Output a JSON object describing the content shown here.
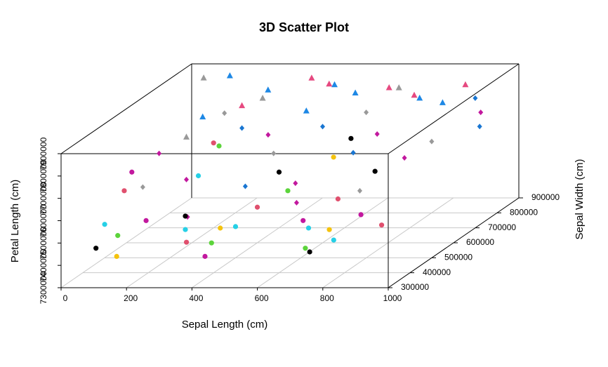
{
  "chart_data": {
    "type": "scatter3d",
    "title": "3D Scatter Plot",
    "x_label": "Sepal Length (cm)",
    "y_label": "Sepal Width (cm)",
    "z_label": "Petal Length (cm)",
    "xlim": [
      0,
      1000
    ],
    "xticks": [
      0,
      200,
      400,
      600,
      800,
      1000
    ],
    "ylim": [
      300000,
      900000
    ],
    "yticks": [
      300000,
      400000,
      500000,
      600000,
      700000,
      800000,
      900000
    ],
    "zlim": [
      7300000,
      7900000
    ],
    "zticks": [
      7300000,
      7400000,
      7500000,
      7600000,
      7700000,
      7800000,
      7900000
    ],
    "grid": true,
    "series": [
      {
        "color": "#1e88e5",
        "shape": "triangle",
        "x": [
          150,
          300,
          450,
          600,
          750,
          900,
          200,
          550
        ],
        "y": [
          850000,
          800000,
          880000,
          750000,
          820000,
          700000,
          650000,
          600000
        ],
        "z": [
          7880000,
          7850000,
          7820000,
          7870000,
          7800000,
          7860000,
          7830000,
          7890000
        ]
      },
      {
        "color": "#999999",
        "shape": "triangle",
        "x": [
          50,
          350,
          700,
          250
        ],
        "y": [
          880000,
          700000,
          800000,
          500000
        ],
        "z": [
          7850000,
          7880000,
          7860000,
          7840000
        ]
      },
      {
        "color": "#e64980",
        "shape": "triangle",
        "x": [
          400,
          500,
          650,
          800,
          300,
          850
        ],
        "y": [
          850000,
          780000,
          830000,
          720000,
          680000,
          880000
        ],
        "z": [
          7870000,
          7890000,
          7840000,
          7880000,
          7860000,
          7820000
        ]
      },
      {
        "color": "#c2189e",
        "shape": "diamond",
        "x": [
          100,
          250,
          400,
          550,
          700,
          850,
          950,
          320,
          620
        ],
        "y": [
          600000,
          500000,
          650000,
          550000,
          700000,
          600000,
          800000,
          400000,
          450000
        ],
        "z": [
          7700000,
          7650000,
          7750000,
          7600000,
          7720000,
          7680000,
          7750000,
          7550000,
          7580000
        ]
      },
      {
        "color": "#999999",
        "shape": "diamond",
        "x": [
          200,
          450,
          600,
          780,
          150,
          900
        ],
        "y": [
          750000,
          600000,
          800000,
          500000,
          450000,
          650000
        ],
        "z": [
          7780000,
          7700000,
          7750000,
          7600000,
          7650000,
          7720000
        ]
      },
      {
        "color": "#1976d2",
        "shape": "diamond",
        "x": [
          300,
          520,
          680,
          900,
          980,
          430
        ],
        "y": [
          680000,
          720000,
          620000,
          850000,
          750000,
          500000
        ],
        "z": [
          7760000,
          7740000,
          7690000,
          7780000,
          7720000,
          7620000
        ]
      },
      {
        "color": "#26d0e6",
        "shape": "circle",
        "x": [
          100,
          300,
          480,
          650,
          820,
          220
        ],
        "y": [
          350000,
          420000,
          380000,
          460000,
          320000,
          600000
        ],
        "z": [
          7550000,
          7480000,
          7520000,
          7460000,
          7500000,
          7600000
        ]
      },
      {
        "color": "#f4c20d",
        "shape": "circle",
        "x": [
          150,
          420,
          780,
          600
        ],
        "y": [
          330000,
          400000,
          360000,
          650000
        ],
        "z": [
          7420000,
          7500000,
          7520000,
          7650000
        ]
      },
      {
        "color": "#5cd43b",
        "shape": "circle",
        "x": [
          120,
          380,
          560,
          720,
          250
        ],
        "y": [
          380000,
          420000,
          500000,
          340000,
          650000
        ],
        "z": [
          7480000,
          7420000,
          7600000,
          7450000,
          7700000
        ]
      },
      {
        "color": "#000000",
        "shape": "circle",
        "x": [
          80,
          280,
          500,
          720,
          760,
          620
        ],
        "y": [
          340000,
          450000,
          550000,
          360000,
          600000,
          700000
        ],
        "z": [
          7450000,
          7520000,
          7650000,
          7420000,
          7620000,
          7700000
        ]
      },
      {
        "color": "#e0506e",
        "shape": "circle",
        "x": [
          60,
          330,
          520,
          700,
          880,
          200
        ],
        "y": [
          500000,
          380000,
          420000,
          520000,
          450000,
          700000
        ],
        "z": [
          7600000,
          7450000,
          7580000,
          7550000,
          7480000,
          7680000
        ]
      },
      {
        "color": "#c2189e",
        "shape": "circle",
        "x": [
          180,
          400,
          620,
          850,
          50
        ],
        "y": [
          420000,
          360000,
          480000,
          400000,
          550000
        ],
        "z": [
          7520000,
          7400000,
          7480000,
          7560000,
          7650000
        ]
      }
    ]
  }
}
